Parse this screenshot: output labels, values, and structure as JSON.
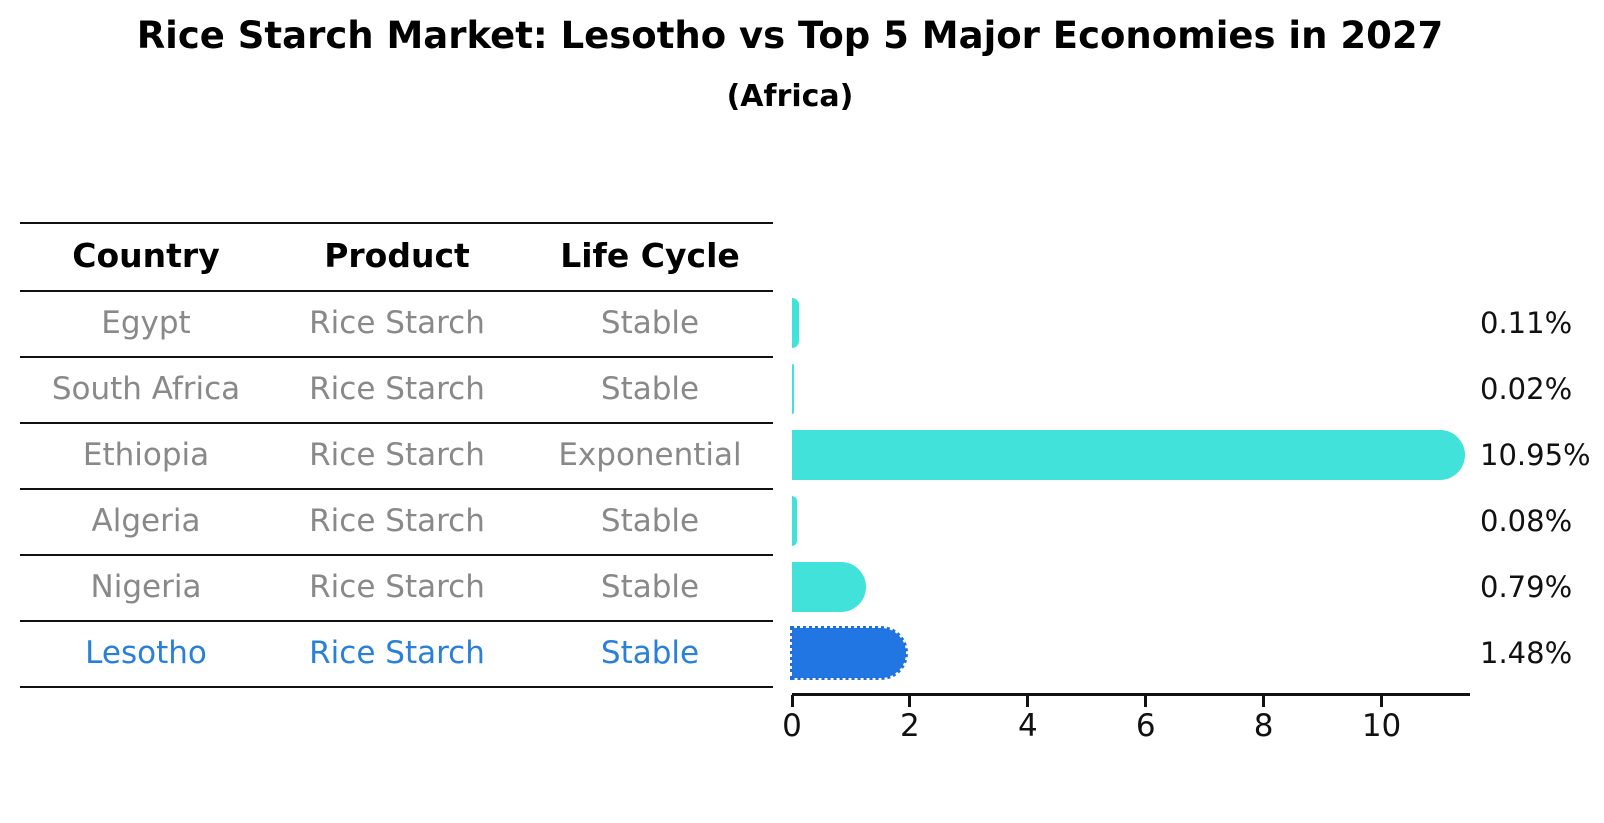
{
  "title": "Rice Starch Market: Lesotho vs Top 5 Major Economies in 2027",
  "subtitle": "(Africa)",
  "colors": {
    "bar_default": "#41E2D9",
    "bar_highlight": "#2176E3",
    "highlight_text": "#2A80D9",
    "cell_text": "#898989",
    "header_text": "#000000",
    "axis_and_labels": "#111111"
  },
  "table": {
    "headers": [
      "Country",
      "Product",
      "Life Cycle"
    ],
    "rows": [
      {
        "country": "Egypt",
        "product": "Rice Starch",
        "life_cycle": "Stable",
        "highlighted": false
      },
      {
        "country": "South Africa",
        "product": "Rice Starch",
        "life_cycle": "Stable",
        "highlighted": false
      },
      {
        "country": "Ethiopia",
        "product": "Rice Starch",
        "life_cycle": "Exponential",
        "highlighted": false
      },
      {
        "country": "Algeria",
        "product": "Rice Starch",
        "life_cycle": "Stable",
        "highlighted": false
      },
      {
        "country": "Nigeria",
        "product": "Rice Starch",
        "life_cycle": "Stable",
        "highlighted": false
      },
      {
        "country": "Lesotho",
        "product": "Rice Starch",
        "life_cycle": "Stable",
        "highlighted": true
      }
    ]
  },
  "chart_data": {
    "type": "bar",
    "orientation": "horizontal",
    "title": "Rice Starch Market: Lesotho vs Top 5 Major Economies in 2027",
    "subtitle": "(Africa)",
    "categories": [
      "Egypt",
      "South Africa",
      "Ethiopia",
      "Algeria",
      "Nigeria",
      "Lesotho"
    ],
    "values": [
      0.11,
      0.02,
      10.95,
      0.08,
      0.79,
      1.48
    ],
    "value_labels": [
      "0.11%",
      "0.02%",
      "10.95%",
      "0.08%",
      "0.79%",
      "1.48%"
    ],
    "highlight_index": 5,
    "xlabel": "",
    "ylabel": "",
    "xlim": [
      0,
      11.5
    ],
    "xticks": [
      0,
      2,
      4,
      6,
      8,
      10
    ],
    "grid": false,
    "legend_position": "none"
  }
}
